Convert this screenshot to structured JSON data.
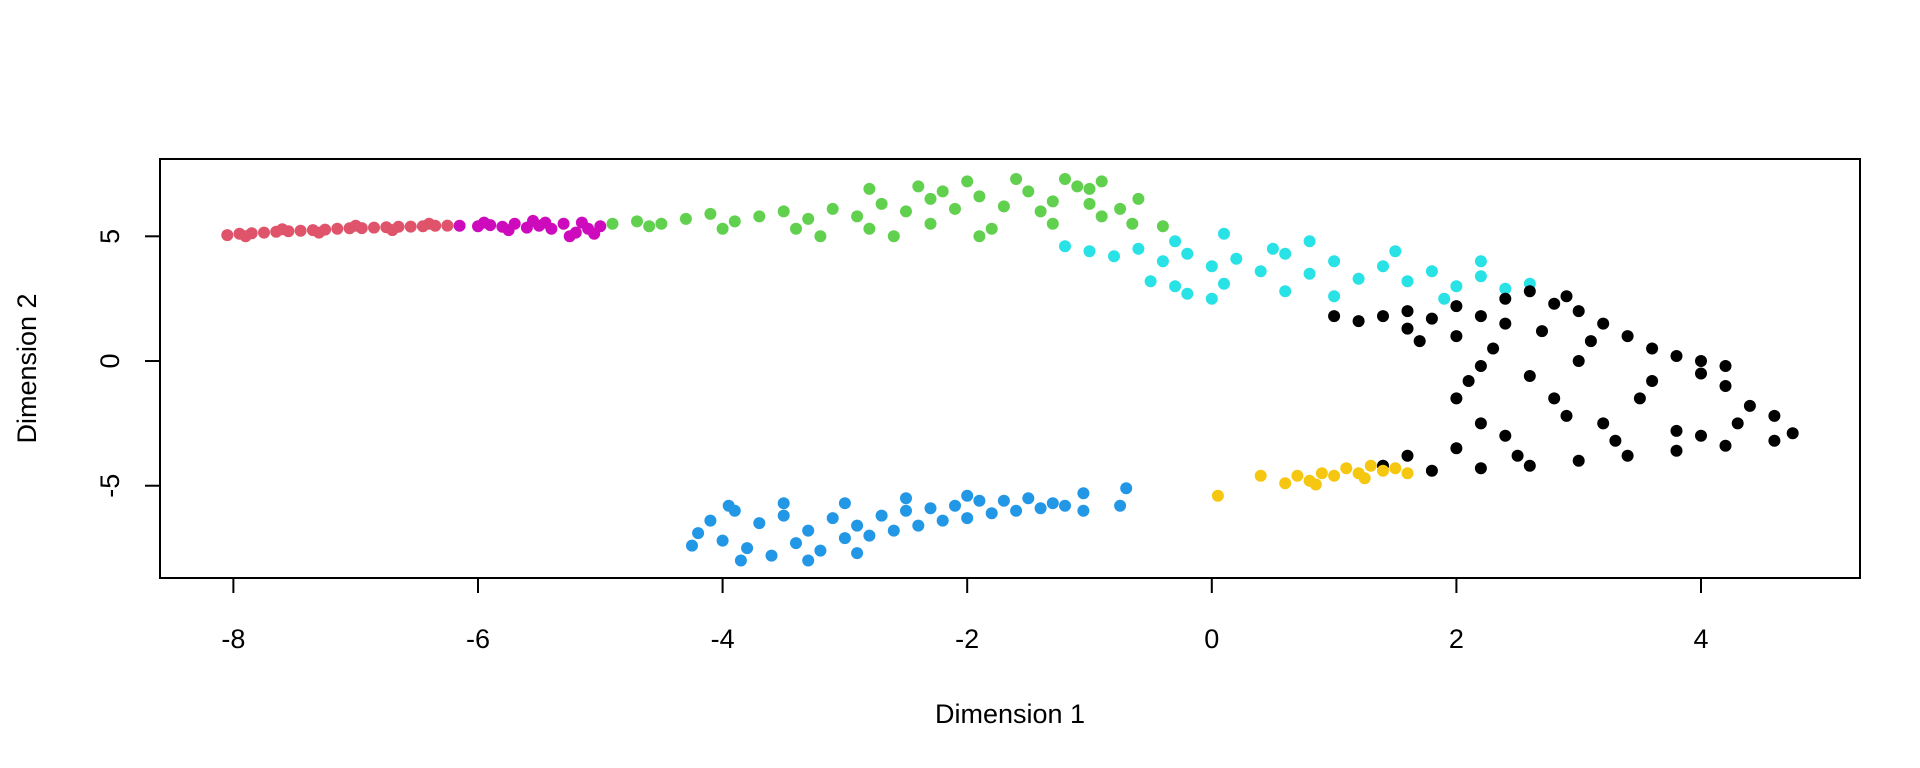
{
  "chart_data": {
    "type": "scatter",
    "title": "",
    "xlabel": "Dimension 1",
    "ylabel": "Dimension 2",
    "xlim": [
      -8.6,
      5.3
    ],
    "ylim": [
      -8.7,
      8.1
    ],
    "x_ticks": [
      -8,
      -6,
      -4,
      -2,
      0,
      2,
      4
    ],
    "y_ticks": [
      -5,
      0,
      5
    ],
    "grid": false,
    "legend": "none",
    "series": [
      {
        "color": "#DF536B",
        "points": [
          [
            -8.05,
            5.05
          ],
          [
            -7.95,
            5.1
          ],
          [
            -7.85,
            5.12
          ],
          [
            -7.75,
            5.15
          ],
          [
            -7.65,
            5.18
          ],
          [
            -7.55,
            5.2
          ],
          [
            -7.45,
            5.22
          ],
          [
            -7.35,
            5.25
          ],
          [
            -7.25,
            5.27
          ],
          [
            -7.15,
            5.3
          ],
          [
            -7.05,
            5.32
          ],
          [
            -6.95,
            5.33
          ],
          [
            -6.85,
            5.35
          ],
          [
            -6.75,
            5.36
          ],
          [
            -6.65,
            5.38
          ],
          [
            -6.55,
            5.39
          ],
          [
            -6.45,
            5.4
          ],
          [
            -6.35,
            5.42
          ],
          [
            -6.25,
            5.43
          ],
          [
            -7.9,
            5.0
          ],
          [
            -7.6,
            5.28
          ],
          [
            -7.3,
            5.15
          ],
          [
            -7.0,
            5.42
          ],
          [
            -6.7,
            5.25
          ],
          [
            -6.4,
            5.5
          ]
        ]
      },
      {
        "color": "#CD0BBC",
        "points": [
          [
            -6.15,
            5.42
          ],
          [
            -6.0,
            5.4
          ],
          [
            -5.9,
            5.45
          ],
          [
            -5.8,
            5.38
          ],
          [
            -5.7,
            5.5
          ],
          [
            -5.6,
            5.35
          ],
          [
            -5.5,
            5.42
          ],
          [
            -5.4,
            5.3
          ],
          [
            -5.3,
            5.5
          ],
          [
            -5.2,
            5.15
          ],
          [
            -5.1,
            5.3
          ],
          [
            -5.05,
            5.1
          ],
          [
            -5.0,
            5.4
          ],
          [
            -5.25,
            5.0
          ],
          [
            -5.45,
            5.55
          ],
          [
            -5.75,
            5.25
          ],
          [
            -5.95,
            5.55
          ],
          [
            -5.55,
            5.62
          ],
          [
            -5.15,
            5.55
          ]
        ]
      },
      {
        "color": "#61D04F",
        "points": [
          [
            -4.9,
            5.5
          ],
          [
            -4.7,
            5.6
          ],
          [
            -4.5,
            5.5
          ],
          [
            -4.3,
            5.7
          ],
          [
            -4.1,
            5.9
          ],
          [
            -3.9,
            5.6
          ],
          [
            -3.7,
            5.8
          ],
          [
            -3.5,
            6.0
          ],
          [
            -3.3,
            5.7
          ],
          [
            -3.1,
            6.1
          ],
          [
            -2.9,
            5.8
          ],
          [
            -2.7,
            6.3
          ],
          [
            -2.5,
            6.0
          ],
          [
            -2.3,
            6.5
          ],
          [
            -2.1,
            6.1
          ],
          [
            -1.9,
            6.6
          ],
          [
            -1.7,
            6.2
          ],
          [
            -1.5,
            6.8
          ],
          [
            -1.3,
            6.4
          ],
          [
            -1.1,
            7.0
          ],
          [
            -2.8,
            6.9
          ],
          [
            -2.4,
            7.0
          ],
          [
            -2.0,
            7.2
          ],
          [
            -1.6,
            7.3
          ],
          [
            -1.2,
            7.3
          ],
          [
            -0.9,
            7.2
          ],
          [
            -1.0,
            6.3
          ],
          [
            -1.3,
            5.5
          ],
          [
            -1.8,
            5.3
          ],
          [
            -2.3,
            5.5
          ],
          [
            -2.8,
            5.3
          ],
          [
            -3.4,
            5.3
          ],
          [
            -4.0,
            5.3
          ],
          [
            -4.6,
            5.4
          ],
          [
            -0.75,
            6.1
          ],
          [
            -0.65,
            5.5
          ],
          [
            -0.4,
            5.4
          ],
          [
            -0.6,
            6.5
          ],
          [
            -0.9,
            5.8
          ],
          [
            -2.6,
            5.0
          ],
          [
            -1.9,
            5.0
          ],
          [
            -3.2,
            5.0
          ],
          [
            -1.4,
            6.0
          ],
          [
            -2.2,
            6.8
          ],
          [
            -1.0,
            6.9
          ]
        ]
      },
      {
        "color": "#28E2E5",
        "points": [
          [
            -1.0,
            4.4
          ],
          [
            -0.8,
            4.2
          ],
          [
            -0.6,
            4.5
          ],
          [
            -0.4,
            4.0
          ],
          [
            -0.2,
            4.3
          ],
          [
            0.0,
            3.8
          ],
          [
            0.2,
            4.1
          ],
          [
            0.4,
            3.6
          ],
          [
            0.6,
            4.3
          ],
          [
            0.8,
            3.5
          ],
          [
            1.0,
            4.0
          ],
          [
            1.2,
            3.3
          ],
          [
            1.4,
            3.8
          ],
          [
            1.6,
            3.2
          ],
          [
            1.8,
            3.6
          ],
          [
            2.0,
            3.0
          ],
          [
            2.2,
            3.4
          ],
          [
            2.4,
            2.9
          ],
          [
            2.6,
            3.1
          ],
          [
            1.0,
            2.6
          ],
          [
            0.6,
            2.8
          ],
          [
            0.1,
            3.1
          ],
          [
            -0.2,
            2.7
          ],
          [
            -0.3,
            3.0
          ],
          [
            -0.5,
            3.2
          ],
          [
            0.0,
            2.5
          ],
          [
            0.1,
            5.1
          ],
          [
            -0.3,
            4.8
          ],
          [
            0.5,
            4.5
          ],
          [
            1.5,
            4.4
          ],
          [
            2.2,
            4.0
          ],
          [
            -1.2,
            4.6
          ],
          [
            0.8,
            4.8
          ],
          [
            1.9,
            2.5
          ]
        ]
      },
      {
        "color": "#000000",
        "points": [
          [
            1.0,
            1.8
          ],
          [
            1.2,
            1.6
          ],
          [
            1.4,
            1.8
          ],
          [
            1.6,
            2.0
          ],
          [
            1.8,
            1.7
          ],
          [
            2.0,
            2.2
          ],
          [
            2.2,
            1.8
          ],
          [
            2.4,
            2.5
          ],
          [
            2.6,
            2.8
          ],
          [
            2.8,
            2.3
          ],
          [
            3.0,
            2.0
          ],
          [
            3.2,
            1.5
          ],
          [
            3.4,
            1.0
          ],
          [
            3.6,
            0.5
          ],
          [
            3.8,
            0.2
          ],
          [
            4.0,
            -0.5
          ],
          [
            4.2,
            -1.0
          ],
          [
            4.4,
            -1.8
          ],
          [
            4.6,
            -2.2
          ],
          [
            4.75,
            -2.9
          ],
          [
            4.6,
            -3.2
          ],
          [
            4.2,
            -3.4
          ],
          [
            3.8,
            -3.6
          ],
          [
            3.4,
            -3.8
          ],
          [
            3.0,
            -4.0
          ],
          [
            2.6,
            -4.2
          ],
          [
            2.2,
            -4.3
          ],
          [
            1.8,
            -4.4
          ],
          [
            1.4,
            -4.2
          ],
          [
            1.6,
            -3.8
          ],
          [
            2.0,
            -3.5
          ],
          [
            2.4,
            -3.0
          ],
          [
            2.2,
            -2.5
          ],
          [
            2.0,
            -1.5
          ],
          [
            2.1,
            -0.8
          ],
          [
            2.2,
            -0.2
          ],
          [
            2.3,
            0.5
          ],
          [
            2.0,
            1.0
          ],
          [
            1.6,
            1.3
          ],
          [
            2.8,
            -1.5
          ],
          [
            3.2,
            -2.5
          ],
          [
            3.5,
            -1.5
          ],
          [
            3.0,
            0.0
          ],
          [
            2.6,
            -0.6
          ],
          [
            3.8,
            -2.8
          ],
          [
            4.3,
            -2.5
          ],
          [
            2.7,
            1.2
          ],
          [
            3.1,
            0.8
          ],
          [
            3.3,
            -3.2
          ],
          [
            2.5,
            -3.8
          ],
          [
            4.0,
            0.0
          ],
          [
            4.2,
            -0.2
          ],
          [
            4.0,
            -3.0
          ],
          [
            1.7,
            0.8
          ],
          [
            2.9,
            -2.2
          ],
          [
            3.6,
            -0.8
          ],
          [
            2.4,
            1.5
          ],
          [
            2.9,
            2.6
          ]
        ]
      },
      {
        "color": "#F5C710",
        "points": [
          [
            0.4,
            -4.6
          ],
          [
            0.6,
            -4.9
          ],
          [
            0.7,
            -4.6
          ],
          [
            0.8,
            -4.8
          ],
          [
            0.9,
            -4.5
          ],
          [
            1.0,
            -4.6
          ],
          [
            1.1,
            -4.3
          ],
          [
            1.2,
            -4.5
          ],
          [
            1.3,
            -4.2
          ],
          [
            1.4,
            -4.4
          ],
          [
            1.5,
            -4.3
          ],
          [
            1.6,
            -4.5
          ],
          [
            1.25,
            -4.7
          ],
          [
            0.85,
            -4.95
          ],
          [
            0.05,
            -5.4
          ]
        ]
      },
      {
        "color": "#2297E6",
        "points": [
          [
            -4.2,
            -6.9
          ],
          [
            -4.1,
            -6.4
          ],
          [
            -4.0,
            -7.2
          ],
          [
            -3.9,
            -6.0
          ],
          [
            -3.8,
            -7.5
          ],
          [
            -3.7,
            -6.5
          ],
          [
            -3.6,
            -7.8
          ],
          [
            -3.5,
            -6.2
          ],
          [
            -3.4,
            -7.3
          ],
          [
            -3.3,
            -6.8
          ],
          [
            -3.2,
            -7.6
          ],
          [
            -3.1,
            -6.3
          ],
          [
            -3.0,
            -7.1
          ],
          [
            -2.9,
            -6.6
          ],
          [
            -2.8,
            -7.0
          ],
          [
            -2.7,
            -6.2
          ],
          [
            -2.6,
            -6.8
          ],
          [
            -2.5,
            -6.0
          ],
          [
            -2.4,
            -6.6
          ],
          [
            -2.3,
            -5.9
          ],
          [
            -2.2,
            -6.4
          ],
          [
            -2.1,
            -5.8
          ],
          [
            -2.0,
            -6.3
          ],
          [
            -1.9,
            -5.6
          ],
          [
            -1.8,
            -6.1
          ],
          [
            -1.7,
            -5.6
          ],
          [
            -1.6,
            -6.0
          ],
          [
            -1.5,
            -5.5
          ],
          [
            -1.4,
            -5.9
          ],
          [
            -1.3,
            -5.7
          ],
          [
            -1.2,
            -5.8
          ],
          [
            -1.05,
            -5.3
          ],
          [
            -1.05,
            -6.0
          ],
          [
            -0.75,
            -5.8
          ],
          [
            -0.7,
            -5.1
          ],
          [
            -4.25,
            -7.4
          ],
          [
            -3.85,
            -8.0
          ],
          [
            -3.3,
            -8.0
          ],
          [
            -2.9,
            -7.7
          ],
          [
            -3.95,
            -5.8
          ],
          [
            -3.5,
            -5.7
          ],
          [
            -3.0,
            -5.7
          ],
          [
            -2.5,
            -5.5
          ],
          [
            -2.0,
            -5.4
          ]
        ]
      }
    ]
  }
}
